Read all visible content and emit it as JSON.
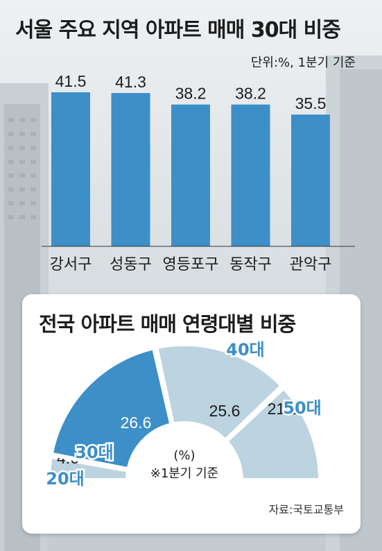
{
  "chart_data": [
    {
      "type": "bar",
      "title": "서울 주요 지역 아파트 매매 30대 비중",
      "unit_note": "단위:%, 1분기 기준",
      "categories": [
        "강서구",
        "성동구",
        "영등포구",
        "동작구",
        "관악구"
      ],
      "values": [
        41.5,
        41.3,
        38.2,
        38.2,
        35.5
      ],
      "value_labels": [
        "41.5",
        "41.3",
        "38.2",
        "38.2",
        "35.5"
      ],
      "bar_color": "#3d8fc8"
    },
    {
      "type": "pie",
      "subtype": "half-donut",
      "title": "전국 아파트 매매 연령대별 비중",
      "center_unit": "(%)",
      "center_note": "※1분기 기준",
      "source": "자료:국토교통부",
      "slices": [
        {
          "label": "20대",
          "value": 4.6,
          "value_label": "4.6",
          "color": "#bcd3e0",
          "label_color": "#3d8fc8"
        },
        {
          "label": "30대",
          "value": 26.6,
          "value_label": "26.6",
          "color": "#3d8fc8",
          "label_color": "#3d8fc8"
        },
        {
          "label": "40대",
          "value": 25.6,
          "value_label": "25.6",
          "color": "#bcd3e0",
          "label_color": "#3d8fc8"
        },
        {
          "label": "50대",
          "value": 21.6,
          "value_label": "21.6",
          "color": "#bcd3e0",
          "label_color": "#3d8fc8"
        }
      ]
    }
  ]
}
